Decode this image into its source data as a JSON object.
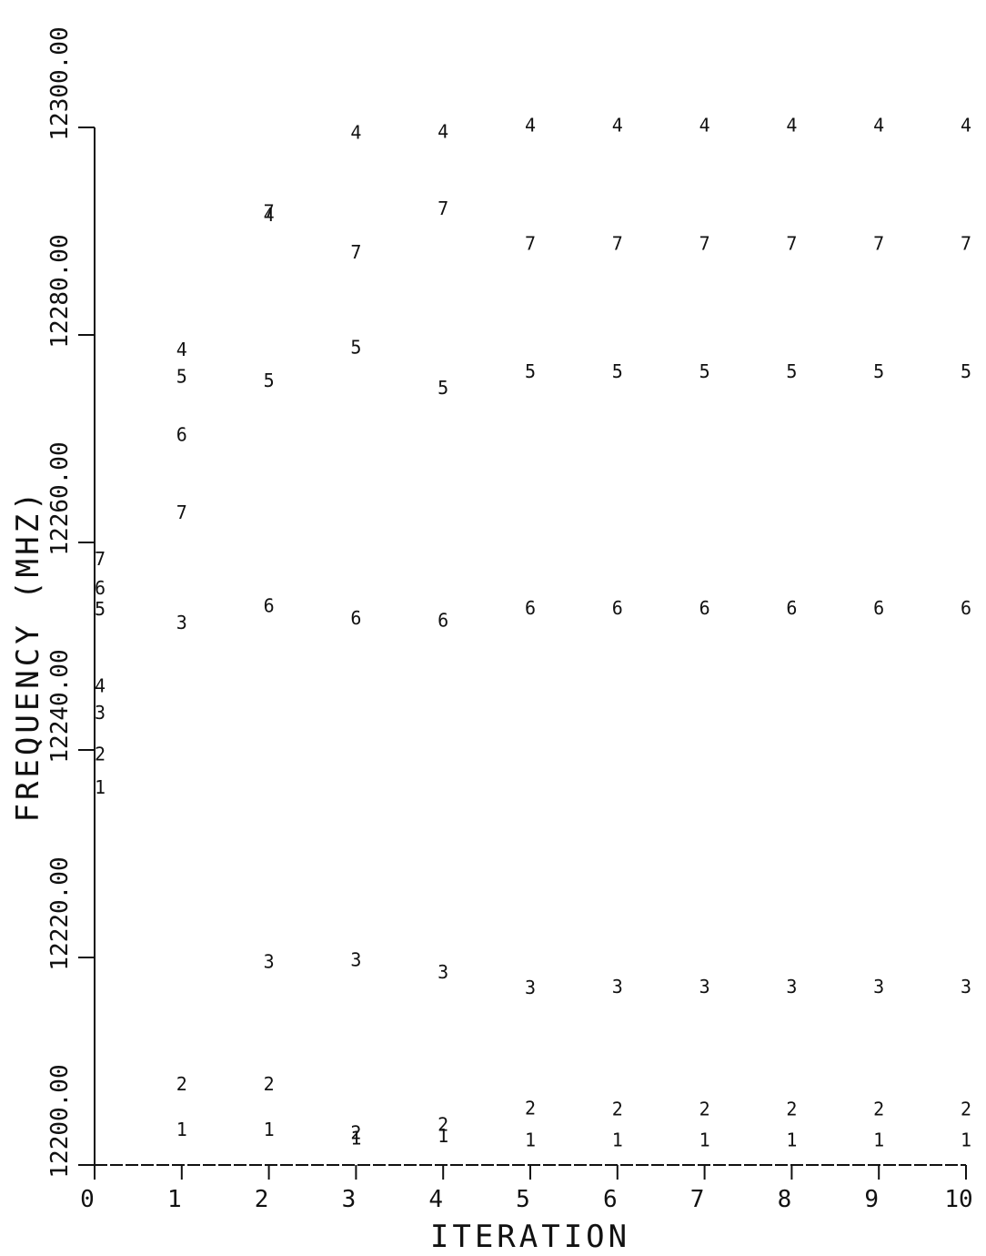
{
  "chart_data": {
    "type": "scatter",
    "title": "",
    "xlabel": "ITERATION",
    "ylabel": "FREQUENCY (MHZ)",
    "xlim": [
      0,
      10
    ],
    "ylim": [
      12200,
      12300
    ],
    "x_ticks": [
      0,
      1,
      2,
      3,
      4,
      5,
      6,
      7,
      8,
      9,
      10
    ],
    "x_tick_labels": [
      "0",
      "1",
      "2",
      "3",
      "4",
      "5",
      "6",
      "7",
      "8",
      "9",
      "10"
    ],
    "y_ticks": [
      12200,
      12220,
      12240,
      12260,
      12280,
      12300
    ],
    "y_tick_labels": [
      "12200.00",
      "12220.00",
      "12240.00",
      "12260.00",
      "12280.00",
      "12300.00"
    ],
    "grid": false,
    "marker": "series number digit",
    "series": [
      {
        "name": "1",
        "x": [
          0,
          1,
          2,
          3,
          4,
          5,
          6,
          7,
          8,
          9,
          10
        ],
        "y": [
          12236.4,
          12203.4,
          12203.4,
          12202.6,
          12202.8,
          12202.4,
          12202.4,
          12202.4,
          12202.4,
          12202.4,
          12202.4
        ]
      },
      {
        "name": "2",
        "x": [
          0,
          1,
          2,
          3,
          4,
          5,
          6,
          7,
          8,
          9,
          10
        ],
        "y": [
          12239.6,
          12207.8,
          12207.8,
          12203.1,
          12203.9,
          12205.5,
          12205.4,
          12205.4,
          12205.4,
          12205.4,
          12205.4
        ]
      },
      {
        "name": "3",
        "x": [
          0,
          1,
          2,
          3,
          4,
          5,
          6,
          7,
          8,
          9,
          10
        ],
        "y": [
          12243.6,
          12252.3,
          12219.6,
          12219.8,
          12218.6,
          12217.1,
          12217.2,
          12217.2,
          12217.2,
          12217.2,
          12217.2
        ]
      },
      {
        "name": "4",
        "x": [
          0,
          1,
          2,
          3,
          4,
          5,
          6,
          7,
          8,
          9,
          10
        ],
        "y": [
          12246.2,
          12278.6,
          12291.6,
          12299.5,
          12299.6,
          12300.2,
          12300.2,
          12300.2,
          12300.2,
          12300.2,
          12300.2
        ]
      },
      {
        "name": "5",
        "x": [
          0,
          1,
          2,
          3,
          4,
          5,
          6,
          7,
          8,
          9,
          10
        ],
        "y": [
          12253.6,
          12276.0,
          12275.6,
          12278.8,
          12274.9,
          12276.5,
          12276.5,
          12276.5,
          12276.5,
          12276.5,
          12276.5
        ]
      },
      {
        "name": "6",
        "x": [
          0,
          1,
          2,
          3,
          4,
          5,
          6,
          7,
          8,
          9,
          10
        ],
        "y": [
          12255.6,
          12270.4,
          12253.9,
          12252.7,
          12252.5,
          12253.7,
          12253.7,
          12253.7,
          12253.7,
          12253.7,
          12253.7
        ]
      },
      {
        "name": "7",
        "x": [
          0,
          1,
          2,
          3,
          4,
          5,
          6,
          7,
          8,
          9,
          10
        ],
        "y": [
          12258.4,
          12262.9,
          12291.9,
          12288.0,
          12292.2,
          12288.8,
          12288.8,
          12288.8,
          12288.8,
          12288.8,
          12288.8
        ]
      }
    ]
  }
}
